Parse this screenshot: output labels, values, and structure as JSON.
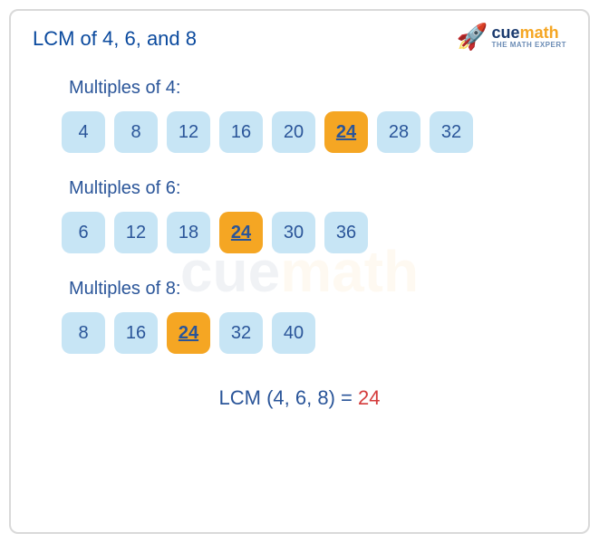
{
  "title": "LCM of 4, 6, and 8",
  "logo": {
    "brand_cue": "cue",
    "brand_math": "math",
    "tagline": "THE MATH EXPERT"
  },
  "watermark": {
    "cue": "cue",
    "math": "math"
  },
  "sections": [
    {
      "label": "Multiples of 4:",
      "cells": [
        {
          "value": "4",
          "highlight": false
        },
        {
          "value": "8",
          "highlight": false
        },
        {
          "value": "12",
          "highlight": false
        },
        {
          "value": "16",
          "highlight": false
        },
        {
          "value": "20",
          "highlight": false
        },
        {
          "value": "24",
          "highlight": true
        },
        {
          "value": "28",
          "highlight": false
        },
        {
          "value": "32",
          "highlight": false
        }
      ]
    },
    {
      "label": "Multiples of 6:",
      "cells": [
        {
          "value": "6",
          "highlight": false
        },
        {
          "value": "12",
          "highlight": false
        },
        {
          "value": "18",
          "highlight": false
        },
        {
          "value": "24",
          "highlight": true
        },
        {
          "value": "30",
          "highlight": false
        },
        {
          "value": "36",
          "highlight": false
        }
      ]
    },
    {
      "label": "Multiples of 8:",
      "cells": [
        {
          "value": "8",
          "highlight": false
        },
        {
          "value": "16",
          "highlight": false
        },
        {
          "value": "24",
          "highlight": true
        },
        {
          "value": "32",
          "highlight": false
        },
        {
          "value": "40",
          "highlight": false
        }
      ]
    }
  ],
  "result": {
    "equation": "LCM (4, 6, 8) = ",
    "answer": "24"
  },
  "colors": {
    "title": "#0b4a9e",
    "label": "#2a5599",
    "cell_bg": "#c7e5f5",
    "cell_text": "#2a5599",
    "highlight_bg": "#f5a623",
    "answer": "#d43b3b",
    "border": "#d9d9d9"
  }
}
